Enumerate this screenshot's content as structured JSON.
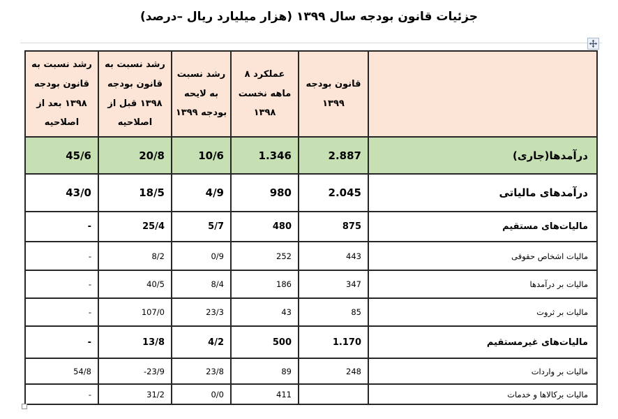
{
  "title": "جزئیات قانون بودجه سال ۱۳۹۹ (هزار میلیارد ریال –درصد)",
  "colors": {
    "header_bg": "#fce4d6",
    "row_highlight": "#c6e0b4",
    "border_color": "#262626",
    "faint_line": "#d8d8d8"
  },
  "icons": {
    "table_move_handle": "four-headed-move-arrow",
    "table_resize_handle": "small-square"
  },
  "table": {
    "columns": [
      {
        "key": "label",
        "label": ""
      },
      {
        "key": "budget_1399",
        "label": "قانون بودجه ۱۳۹۹"
      },
      {
        "key": "perf_8m_1398",
        "label": "عملکرد ۸ ماهه نخست ۱۳۹۸"
      },
      {
        "key": "growth_vs_bill_1399",
        "label": "رشد نسبت به لایحه بودجه ۱۳۹۹"
      },
      {
        "key": "growth_vs_law_1398_before",
        "label": "رشد نسبت به قانون بودجه ۱۳۹۸ قبل از اصلاحیه"
      },
      {
        "key": "growth_vs_law_1398_after",
        "label": "رشد نسبت به قانون بودجه ۱۳۹۸ بعد از اصلاحیه"
      }
    ],
    "rows": [
      {
        "style": "total",
        "label": "درآمدها(جاری)",
        "budget_1399": "2.887",
        "perf_8m_1398": "1.346",
        "growth_vs_bill_1399": "10/6",
        "growth_vs_law_1398_before": "20/8",
        "growth_vs_law_1398_after": "45/6"
      },
      {
        "style": "major",
        "label": "درآمدهای مالیاتی",
        "budget_1399": "2.045",
        "perf_8m_1398": "980",
        "growth_vs_bill_1399": "4/9",
        "growth_vs_law_1398_before": "18/5",
        "growth_vs_law_1398_after": "43/0"
      },
      {
        "style": "mid",
        "label": "مالیات‌های مستقیم",
        "budget_1399": "875",
        "perf_8m_1398": "480",
        "growth_vs_bill_1399": "5/7",
        "growth_vs_law_1398_before": "25/4",
        "growth_vs_law_1398_after": "-"
      },
      {
        "style": "minor",
        "label": "مالیات اشخاص حقوقی",
        "budget_1399": "443",
        "perf_8m_1398": "252",
        "growth_vs_bill_1399": "0/9",
        "growth_vs_law_1398_before": "8/2",
        "growth_vs_law_1398_after": "-"
      },
      {
        "style": "minor",
        "label": "مالیات بر درآمدها",
        "budget_1399": "347",
        "perf_8m_1398": "186",
        "growth_vs_bill_1399": "8/4",
        "growth_vs_law_1398_before": "40/5",
        "growth_vs_law_1398_after": "-"
      },
      {
        "style": "minor",
        "label": "مالیات بر ثروت",
        "budget_1399": "85",
        "perf_8m_1398": "43",
        "growth_vs_bill_1399": "23/3",
        "growth_vs_law_1398_before": "107/0",
        "growth_vs_law_1398_after": "-"
      },
      {
        "style": "mid",
        "label": "مالیات‌های غیرمستقیم",
        "budget_1399": "1.170",
        "perf_8m_1398": "500",
        "growth_vs_bill_1399": "4/2",
        "growth_vs_law_1398_before": "13/8",
        "growth_vs_law_1398_after": "-"
      },
      {
        "style": "minor",
        "label": "مالیات بر واردات",
        "budget_1399": "248",
        "perf_8m_1398": "89",
        "growth_vs_bill_1399": "23/8",
        "growth_vs_law_1398_before": "-23/9",
        "growth_vs_law_1398_after": "54/8"
      },
      {
        "style": "minor",
        "label": "مالیات برکالاها و خدمات",
        "budget_1399": "",
        "perf_8m_1398": "411",
        "growth_vs_bill_1399": "0/0",
        "growth_vs_law_1398_before": "31/2",
        "growth_vs_law_1398_after": "-"
      }
    ]
  }
}
